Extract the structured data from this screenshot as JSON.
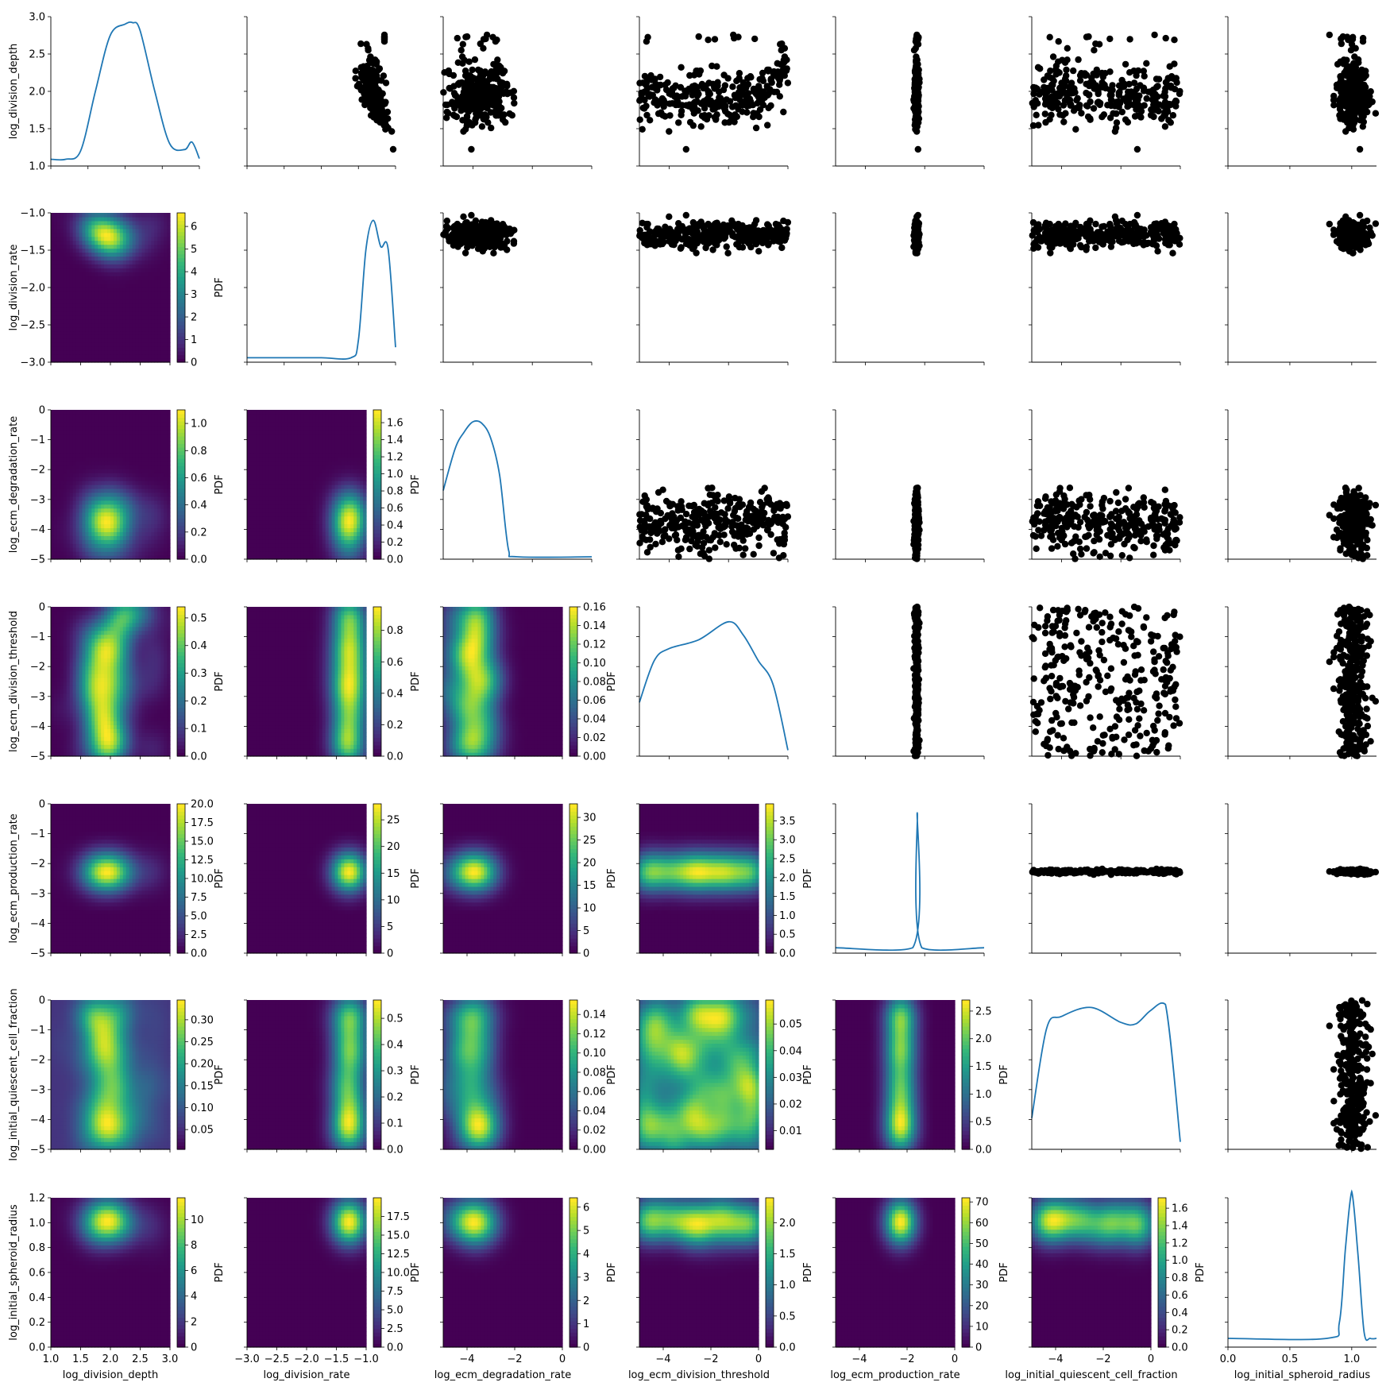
{
  "figure": {
    "title": "",
    "pdf_label": "PDF"
  },
  "parameters": [
    {
      "name": "log_division_depth",
      "range": [
        1.0,
        3.0
      ],
      "ticks": [
        1.0,
        1.5,
        2.0,
        2.5,
        3.0
      ],
      "tick_labels": [
        "1.0",
        "1.5",
        "2.0",
        "2.5",
        "3.0"
      ]
    },
    {
      "name": "log_division_rate",
      "range": [
        -3.0,
        -1.0
      ],
      "ticks": [
        -3.0,
        -2.5,
        -2.0,
        -1.5,
        -1.0
      ],
      "tick_labels": [
        "−3.0",
        "−2.5",
        "−2.0",
        "−1.5",
        "−1.0"
      ]
    },
    {
      "name": "log_ecm_degradation_rate",
      "range": [
        -5,
        0
      ],
      "ticks": [
        -4,
        -2,
        0
      ],
      "tick_labels": [
        "−4",
        "−2",
        "0"
      ],
      "ytick_labels": [
        "−5",
        "−4",
        "−3",
        "−2",
        "−1",
        "0"
      ],
      "yticks": [
        -5,
        -4,
        -3,
        -2,
        -1,
        0
      ]
    },
    {
      "name": "log_ecm_division_threshold",
      "range": [
        -5,
        0
      ],
      "ticks": [
        -4,
        -2,
        0
      ],
      "tick_labels": [
        "−4",
        "−2",
        "0"
      ],
      "ytick_labels": [
        "−5",
        "−4",
        "−3",
        "−2",
        "−1",
        "0"
      ],
      "yticks": [
        -5,
        -4,
        -3,
        -2,
        -1,
        0
      ]
    },
    {
      "name": "log_ecm_production_rate",
      "range": [
        -5,
        0
      ],
      "ticks": [
        -4,
        -2,
        0
      ],
      "tick_labels": [
        "−4",
        "−2",
        "0"
      ],
      "ytick_labels": [
        "−5",
        "−4",
        "−3",
        "−2",
        "−1",
        "0"
      ],
      "yticks": [
        -5,
        -4,
        -3,
        -2,
        -1,
        0
      ]
    },
    {
      "name": "log_initial_quiescent_cell_fraction",
      "range": [
        -5,
        0
      ],
      "ticks": [
        -4,
        -2,
        0
      ],
      "tick_labels": [
        "−4",
        "−2",
        "0"
      ],
      "ytick_labels": [
        "−5",
        "−4",
        "−3",
        "−2",
        "−1",
        "0"
      ],
      "yticks": [
        -5,
        -4,
        -3,
        -2,
        -1,
        0
      ]
    },
    {
      "name": "log_initial_spheroid_radius",
      "range": [
        0.0,
        1.2
      ],
      "ticks": [
        0.0,
        0.5,
        1.0
      ],
      "tick_labels": [
        "0.0",
        "0.5",
        "1.0"
      ],
      "ytick_labels": [
        "0.0",
        "0.2",
        "0.4",
        "0.6",
        "0.8",
        "1.0",
        "1.2"
      ],
      "yticks": [
        0.0,
        0.2,
        0.4,
        0.6,
        0.8,
        1.0,
        1.2
      ]
    }
  ],
  "colorbars": {
    "1_0": {
      "max": 6.6,
      "ticks": [
        "0",
        "1",
        "2",
        "3",
        "4",
        "5",
        "6"
      ]
    },
    "2_0": {
      "max": 1.1,
      "ticks": [
        "0.0",
        "0.2",
        "0.4",
        "0.6",
        "0.8",
        "1.0"
      ]
    },
    "2_1": {
      "max": 1.75,
      "ticks": [
        "0.0",
        "0.2",
        "0.4",
        "0.6",
        "0.8",
        "1.0",
        "1.2",
        "1.4",
        "1.6"
      ]
    },
    "3_0": {
      "max": 0.54,
      "ticks": [
        "0.0",
        "0.1",
        "0.2",
        "0.3",
        "0.4",
        "0.5"
      ]
    },
    "3_1": {
      "max": 0.95,
      "ticks": [
        "0.0",
        "0.2",
        "0.4",
        "0.6",
        "0.8"
      ]
    },
    "3_2": {
      "max": 0.16,
      "ticks": [
        "0.00",
        "0.02",
        "0.04",
        "0.06",
        "0.08",
        "0.10",
        "0.12",
        "0.14",
        "0.16"
      ]
    },
    "4_0": {
      "max": 20.0,
      "ticks": [
        "0.0",
        "2.5",
        "5.0",
        "7.5",
        "10.0",
        "12.5",
        "15.0",
        "17.5",
        "20.0"
      ]
    },
    "4_1": {
      "max": 28.0,
      "ticks": [
        "0",
        "5",
        "10",
        "15",
        "20",
        "25"
      ]
    },
    "4_2": {
      "max": 33.0,
      "ticks": [
        "0",
        "5",
        "10",
        "15",
        "20",
        "25",
        "30"
      ]
    },
    "4_3": {
      "max": 3.95,
      "ticks": [
        "0.0",
        "0.5",
        "1.0",
        "1.5",
        "2.0",
        "2.5",
        "3.0",
        "3.5"
      ]
    },
    "5_0": {
      "min": 0.005,
      "max": 0.345,
      "ticks": [
        "0.05",
        "0.10",
        "0.15",
        "0.20",
        "0.25",
        "0.30"
      ]
    },
    "5_1": {
      "max": 0.57,
      "ticks": [
        "0.0",
        "0.1",
        "0.2",
        "0.3",
        "0.4",
        "0.5"
      ]
    },
    "5_2": {
      "max": 0.155,
      "ticks": [
        "0.00",
        "0.02",
        "0.04",
        "0.06",
        "0.08",
        "0.10",
        "0.12",
        "0.14"
      ]
    },
    "5_3": {
      "min": 0.003,
      "max": 0.059,
      "ticks": [
        "0.01",
        "0.02",
        "0.03",
        "0.04",
        "0.05"
      ]
    },
    "5_4": {
      "max": 2.7,
      "ticks": [
        "0.0",
        "0.5",
        "1.0",
        "1.5",
        "2.0",
        "2.5"
      ]
    },
    "6_0": {
      "max": 11.7,
      "ticks": [
        "0",
        "2",
        "4",
        "6",
        "8",
        "10"
      ]
    },
    "6_1": {
      "max": 20.0,
      "ticks": [
        "0.0",
        "2.5",
        "5.0",
        "7.5",
        "10.0",
        "12.5",
        "15.0",
        "17.5"
      ]
    },
    "6_2": {
      "max": 6.4,
      "ticks": [
        "0",
        "1",
        "2",
        "3",
        "4",
        "5",
        "6"
      ]
    },
    "6_3": {
      "max": 2.4,
      "ticks": [
        "0.0",
        "0.5",
        "1.0",
        "1.5",
        "2.0"
      ]
    },
    "6_4": {
      "max": 72.0,
      "ticks": [
        "0",
        "10",
        "20",
        "30",
        "40",
        "50",
        "60",
        "70"
      ]
    },
    "6_5": {
      "max": 1.72,
      "ticks": [
        "0.0",
        "0.2",
        "0.4",
        "0.6",
        "0.8",
        "1.0",
        "1.2",
        "1.4",
        "1.6"
      ]
    }
  },
  "chart_data": {
    "type": "scatter",
    "title": "",
    "description_of_layout": "7x7 pair plot: diagonal = 1D KDE line, upper = scatter of samples, lower = 2D KDE heatmap with PDF colorbar",
    "marginals": {
      "log_division_depth": {
        "x": [
          1.0,
          1.2,
          1.4,
          1.6,
          1.8,
          2.0,
          2.1,
          2.2,
          2.4,
          2.6,
          2.8,
          2.9,
          3.0
        ],
        "pdf": [
          1.09,
          1.09,
          1.2,
          2.0,
          2.75,
          2.9,
          2.92,
          2.82,
          2.0,
          1.3,
          1.22,
          1.32,
          1.1
        ]
      },
      "log_division_rate": {
        "x": [
          -3.0,
          -2.5,
          -2.0,
          -1.6,
          -1.5,
          -1.4,
          -1.3,
          -1.2,
          -1.1,
          -1.0
        ],
        "pdf": [
          -2.94,
          -2.94,
          -2.94,
          -2.94,
          -2.7,
          -1.5,
          -1.1,
          -1.45,
          -1.48,
          -2.8
        ]
      },
      "log_ecm_degradation_rate": {
        "x": [
          -5,
          -4.6,
          -4.3,
          -4.0,
          -3.7,
          -3.4,
          -3.1,
          -2.8,
          -2.5,
          0
        ],
        "pdf": [
          -2.7,
          -1.3,
          -0.75,
          -0.4,
          -0.45,
          -0.95,
          -2.2,
          -4.7,
          -4.92,
          -4.92
        ]
      },
      "log_ecm_division_threshold": {
        "x": [
          -5,
          -4.5,
          -4,
          -3,
          -2,
          -1.5,
          -1,
          -0.5,
          0
        ],
        "pdf": [
          -3.2,
          -1.8,
          -1.4,
          -1.1,
          -0.5,
          -0.95,
          -1.8,
          -2.6,
          -4.8
        ]
      },
      "log_ecm_production_rate": {
        "x": [
          -5,
          -2.4,
          -2.25,
          -2.1,
          0
        ],
        "pdf": [
          -4.82,
          -4.82,
          -0.3,
          -4.82,
          -4.82
        ]
      },
      "log_initial_quiescent_cell_fraction": {
        "x": [
          -5,
          -4.5,
          -4,
          -3,
          -2,
          -1.5,
          -1,
          -0.5,
          0
        ],
        "pdf": [
          -3.95,
          -0.95,
          -0.55,
          -0.25,
          -0.75,
          -0.8,
          -0.35,
          -0.15,
          -4.75
        ]
      },
      "log_initial_spheroid_radius": {
        "x": [
          0.0,
          0.8,
          0.9,
          0.95,
          1.0,
          1.05,
          1.1,
          1.15,
          1.2
        ],
        "pdf": [
          0.07,
          0.07,
          0.2,
          0.8,
          1.25,
          0.75,
          0.12,
          0.07,
          0.07
        ]
      }
    },
    "sample_clusters": {
      "log_division_depth": {
        "center": 1.9,
        "spread": 0.18,
        "extra": [
          2.7
        ]
      },
      "log_division_rate": {
        "center": -1.3,
        "spread": 0.1
      },
      "log_ecm_degradation_rate": {
        "center": -3.8,
        "spread": 0.5
      },
      "log_ecm_division_threshold": {
        "range": [
          -5,
          0
        ]
      },
      "log_ecm_production_rate": {
        "center": -2.27,
        "spread": 0.03
      },
      "log_initial_quiescent_cell_fraction": {
        "range": [
          -5,
          0
        ]
      },
      "log_initial_spheroid_radius": {
        "center": 1.0,
        "spread": 0.06
      }
    }
  }
}
